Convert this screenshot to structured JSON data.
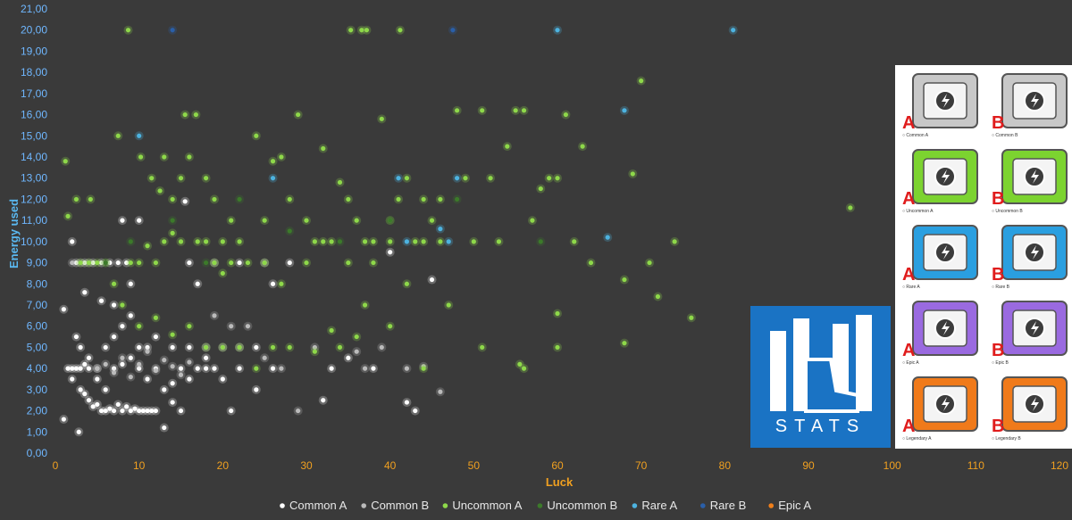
{
  "chart_data": {
    "type": "scatter",
    "xlabel": "Luck",
    "ylabel": "Energy used",
    "xlim": [
      0,
      120
    ],
    "ylim": [
      0,
      21
    ],
    "x_ticks": [
      "0",
      "10",
      "20",
      "30",
      "40",
      "50",
      "60",
      "70",
      "80",
      "90",
      "100",
      "110",
      "120"
    ],
    "y_ticks": [
      "0,00",
      "1,00",
      "2,00",
      "3,00",
      "4,00",
      "5,00",
      "6,00",
      "7,00",
      "8,00",
      "9,00",
      "10,00",
      "11,00",
      "12,00",
      "13,00",
      "14,00",
      "15,00",
      "16,00",
      "17,00",
      "18,00",
      "19,00",
      "20,00",
      "21,00"
    ],
    "grid": false,
    "legend_position": "bottom",
    "series": [
      {
        "name": "Common A",
        "color": "#ffffff",
        "points": [
          [
            1,
            1.6
          ],
          [
            2.8,
            1
          ],
          [
            1.5,
            4
          ],
          [
            2,
            4
          ],
          [
            2.5,
            4
          ],
          [
            3,
            4
          ],
          [
            3.5,
            4.2
          ],
          [
            4,
            4
          ],
          [
            5,
            4
          ],
          [
            2,
            3.5
          ],
          [
            3,
            3
          ],
          [
            3.5,
            2.8
          ],
          [
            4,
            2.5
          ],
          [
            4.5,
            2.2
          ],
          [
            5,
            2.3
          ],
          [
            5.5,
            2
          ],
          [
            6,
            2
          ],
          [
            6.5,
            2.1
          ],
          [
            7,
            2
          ],
          [
            7.5,
            2.3
          ],
          [
            8,
            2
          ],
          [
            8.5,
            2.2
          ],
          [
            9,
            2
          ],
          [
            9.5,
            2.1
          ],
          [
            10,
            2
          ],
          [
            10.5,
            2
          ],
          [
            11,
            2
          ],
          [
            11.5,
            2
          ],
          [
            12,
            2
          ],
          [
            13,
            1.2
          ],
          [
            14,
            2.4
          ],
          [
            15,
            2
          ],
          [
            3,
            5
          ],
          [
            4,
            4.5
          ],
          [
            5,
            3.5
          ],
          [
            6,
            3
          ],
          [
            7,
            4
          ],
          [
            8,
            4.2
          ],
          [
            9,
            4.5
          ],
          [
            10,
            4
          ],
          [
            11,
            3.5
          ],
          [
            12,
            4
          ],
          [
            13,
            3
          ],
          [
            14,
            3.3
          ],
          [
            15,
            4
          ],
          [
            16,
            3.5
          ],
          [
            17,
            4
          ],
          [
            18,
            4
          ],
          [
            19,
            4
          ],
          [
            20,
            3.5
          ],
          [
            21,
            2
          ],
          [
            22,
            4
          ],
          [
            2.5,
            9
          ],
          [
            3.5,
            9
          ],
          [
            4.5,
            9
          ],
          [
            5.5,
            9
          ],
          [
            6.5,
            9
          ],
          [
            7.5,
            9
          ],
          [
            8.5,
            9
          ],
          [
            6,
            5
          ],
          [
            7,
            5.5
          ],
          [
            8,
            6
          ],
          [
            9,
            6.5
          ],
          [
            10,
            5
          ],
          [
            11,
            5
          ],
          [
            12,
            5.5
          ],
          [
            14,
            5
          ],
          [
            16,
            5
          ],
          [
            18,
            5
          ],
          [
            20,
            5
          ],
          [
            22,
            5
          ],
          [
            24,
            5
          ],
          [
            16,
            9
          ],
          [
            17,
            8
          ],
          [
            19,
            9
          ],
          [
            22,
            9
          ],
          [
            25,
            9
          ],
          [
            26,
            8
          ],
          [
            28,
            9
          ],
          [
            32,
            2.5
          ],
          [
            33,
            4
          ],
          [
            35,
            4.5
          ],
          [
            38,
            4
          ],
          [
            40,
            9.5
          ],
          [
            42,
            2.4
          ],
          [
            43,
            2
          ],
          [
            45,
            8.2
          ],
          [
            26,
            4
          ],
          [
            24,
            3
          ],
          [
            7,
            7
          ],
          [
            9,
            8
          ],
          [
            10,
            11
          ],
          [
            2,
            10
          ],
          [
            1,
            6.8
          ],
          [
            2.5,
            5.5
          ],
          [
            3.5,
            7.6
          ],
          [
            5.5,
            7.2
          ],
          [
            8,
            11
          ],
          [
            15.5,
            11.9
          ],
          [
            18,
            4.5
          ]
        ]
      },
      {
        "name": "Common B",
        "color": "#bbbbbb",
        "points": [
          [
            2,
            9
          ],
          [
            3,
            9
          ],
          [
            4,
            9
          ],
          [
            5,
            4
          ],
          [
            6,
            4.2
          ],
          [
            7,
            3.8
          ],
          [
            8,
            4.5
          ],
          [
            9,
            3.6
          ],
          [
            10,
            4.2
          ],
          [
            11,
            4.8
          ],
          [
            12,
            3.9
          ],
          [
            13,
            4.4
          ],
          [
            14,
            4.1
          ],
          [
            15,
            3.7
          ],
          [
            16,
            4.3
          ],
          [
            19,
            6.5
          ],
          [
            21,
            6
          ],
          [
            23,
            6
          ],
          [
            25,
            4.5
          ],
          [
            27,
            4
          ],
          [
            29,
            2
          ],
          [
            31,
            5
          ],
          [
            36,
            4.8
          ],
          [
            37,
            4
          ],
          [
            39,
            5
          ],
          [
            42,
            4
          ],
          [
            44,
            4.1
          ],
          [
            46,
            2.9
          ]
        ]
      },
      {
        "name": "Uncommon A",
        "color": "#8ed84a",
        "points": [
          [
            1.2,
            13.8
          ],
          [
            1.5,
            11.2
          ],
          [
            2.5,
            12
          ],
          [
            4.2,
            12
          ],
          [
            8.7,
            20
          ],
          [
            35.3,
            20
          ],
          [
            36.6,
            20
          ],
          [
            37.2,
            20
          ],
          [
            41.2,
            20
          ],
          [
            15.5,
            16
          ],
          [
            16.8,
            16
          ],
          [
            7.5,
            15
          ],
          [
            10.2,
            14
          ],
          [
            13,
            14
          ],
          [
            16,
            14
          ],
          [
            18,
            13
          ],
          [
            11.5,
            13
          ],
          [
            12.5,
            12.4
          ],
          [
            14,
            12
          ],
          [
            15,
            13
          ],
          [
            19,
            12
          ],
          [
            20,
            10
          ],
          [
            21,
            11
          ],
          [
            22,
            10
          ],
          [
            24,
            15
          ],
          [
            25,
            11
          ],
          [
            26,
            13.8
          ],
          [
            27,
            14
          ],
          [
            28,
            12
          ],
          [
            29,
            16
          ],
          [
            30,
            11
          ],
          [
            31,
            10
          ],
          [
            32,
            14.4
          ],
          [
            33,
            10
          ],
          [
            34,
            12.8
          ],
          [
            35,
            12
          ],
          [
            36,
            11
          ],
          [
            37,
            10
          ],
          [
            38,
            9
          ],
          [
            39,
            15.8
          ],
          [
            40,
            11
          ],
          [
            41,
            12
          ],
          [
            42,
            13
          ],
          [
            43,
            10
          ],
          [
            44,
            12
          ],
          [
            45,
            11
          ],
          [
            46,
            10
          ],
          [
            48,
            16.2
          ],
          [
            49,
            13
          ],
          [
            50,
            10
          ],
          [
            51,
            16.2
          ],
          [
            52,
            13
          ],
          [
            53,
            10
          ],
          [
            54,
            14.5
          ],
          [
            55,
            16.2
          ],
          [
            56,
            16.2
          ],
          [
            57,
            11
          ],
          [
            58,
            12.5
          ],
          [
            59,
            13
          ],
          [
            60,
            13
          ],
          [
            61,
            16
          ],
          [
            62,
            10
          ],
          [
            63,
            14.5
          ],
          [
            64,
            9
          ],
          [
            68,
            8.2
          ],
          [
            69,
            13.2
          ],
          [
            70,
            17.6
          ],
          [
            71,
            9
          ],
          [
            72,
            7.4
          ],
          [
            74,
            10
          ],
          [
            76,
            6.4
          ],
          [
            95,
            11.6
          ],
          [
            60,
            6.6
          ],
          [
            60,
            5
          ],
          [
            68,
            5.2
          ],
          [
            51,
            5
          ],
          [
            56,
            4
          ],
          [
            55.5,
            4.2
          ],
          [
            44,
            4
          ],
          [
            47,
            7
          ],
          [
            40,
            6
          ],
          [
            36,
            5.5
          ],
          [
            34,
            5
          ],
          [
            33,
            5.8
          ],
          [
            31,
            4.8
          ],
          [
            28,
            5
          ],
          [
            26,
            5
          ],
          [
            24,
            4
          ],
          [
            22,
            5
          ],
          [
            20,
            5
          ],
          [
            18,
            5
          ],
          [
            16,
            6
          ],
          [
            14,
            5.6
          ],
          [
            12,
            6.4
          ],
          [
            10,
            6
          ],
          [
            8,
            7
          ],
          [
            7,
            8
          ],
          [
            6,
            9
          ],
          [
            5,
            9
          ],
          [
            4,
            9
          ],
          [
            3,
            9
          ],
          [
            9,
            9
          ],
          [
            10,
            9
          ],
          [
            11,
            9.8
          ],
          [
            12,
            9
          ],
          [
            13,
            10
          ],
          [
            14,
            10.4
          ],
          [
            15,
            10
          ],
          [
            17,
            10
          ],
          [
            18,
            10
          ],
          [
            19,
            9
          ],
          [
            20,
            8.5
          ],
          [
            21,
            9
          ],
          [
            23,
            9
          ],
          [
            25,
            9
          ],
          [
            27,
            8
          ],
          [
            30,
            9
          ],
          [
            32,
            10
          ],
          [
            35,
            9
          ],
          [
            37,
            7
          ],
          [
            38,
            10
          ],
          [
            40,
            10
          ],
          [
            42,
            8
          ],
          [
            44,
            10
          ],
          [
            46,
            12
          ]
        ]
      },
      {
        "name": "Uncommon B",
        "color": "#3c7a2a",
        "points": [
          [
            6,
            9
          ],
          [
            9,
            10
          ],
          [
            14,
            11
          ],
          [
            18,
            9
          ],
          [
            22,
            12
          ],
          [
            28,
            10.5
          ],
          [
            34,
            10
          ],
          [
            40,
            11
          ],
          [
            48,
            12
          ],
          [
            58,
            10
          ]
        ]
      },
      {
        "name": "Rare A",
        "color": "#4db3e0",
        "points": [
          [
            10,
            15
          ],
          [
            26,
            13
          ],
          [
            41,
            13
          ],
          [
            42,
            10
          ],
          [
            46,
            10.6
          ],
          [
            47,
            10
          ],
          [
            48,
            13
          ],
          [
            60,
            20
          ],
          [
            66,
            10.2
          ],
          [
            68,
            16.2
          ],
          [
            81,
            20
          ]
        ]
      },
      {
        "name": "Rare B",
        "color": "#2a5fa8",
        "points": [
          [
            14,
            20
          ],
          [
            47.5,
            20
          ]
        ]
      },
      {
        "name": "Epic A",
        "color": "#f07f1a",
        "points": []
      }
    ]
  },
  "logo": {
    "text": "STATS"
  },
  "crate_panel": {
    "cells": [
      {
        "letter": "A",
        "caption": "Common A",
        "color": "#c8c8c8"
      },
      {
        "letter": "B",
        "caption": "Common B",
        "color": "#c8c8c8"
      },
      {
        "letter": "A",
        "caption": "Uncommon A",
        "color": "#7cd330"
      },
      {
        "letter": "B",
        "caption": "Uncommon B",
        "color": "#7cd330"
      },
      {
        "letter": "A",
        "caption": "Rare A",
        "color": "#2a9fe0"
      },
      {
        "letter": "B",
        "caption": "Rare B",
        "color": "#2a9fe0"
      },
      {
        "letter": "A",
        "caption": "Epic A",
        "color": "#9a6ae0"
      },
      {
        "letter": "B",
        "caption": "Epic B",
        "color": "#9a6ae0"
      },
      {
        "letter": "A",
        "caption": "Legendary A",
        "color": "#f07a1a"
      },
      {
        "letter": "B",
        "caption": "Legendary B",
        "color": "#f07a1a"
      }
    ]
  }
}
